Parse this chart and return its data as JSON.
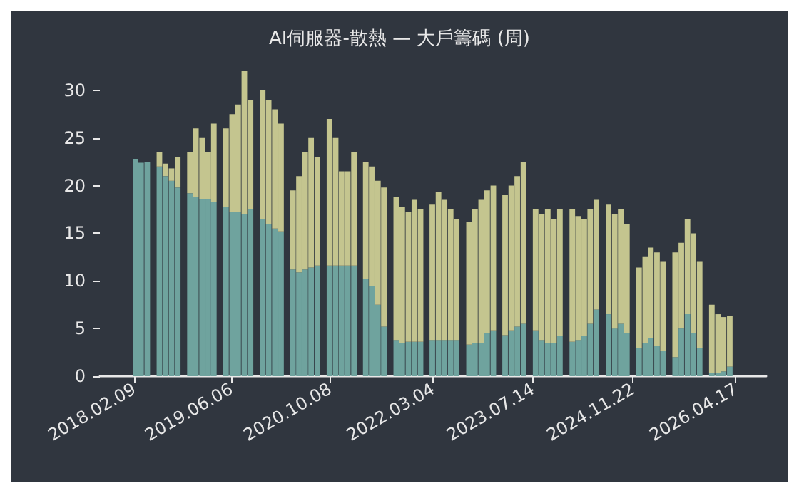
{
  "chart_data": {
    "type": "bar",
    "stacked": true,
    "title": "AI伺服器-散熱 — 大戶籌碼 (周)",
    "x": [
      "2018-02",
      "2018-03",
      "2018-04",
      "2018-05",
      "2018-06",
      "2018-07",
      "2018-08",
      "2018-09",
      "2018-10",
      "2018-11",
      "2018-12",
      "2019-01",
      "2019-02",
      "2019-03",
      "2019-04",
      "2019-05",
      "2019-06",
      "2019-07",
      "2019-08",
      "2019-09",
      "2019-10",
      "2019-11",
      "2019-12",
      "2020-01",
      "2020-02",
      "2020-03",
      "2020-04",
      "2020-05",
      "2020-06",
      "2020-07",
      "2020-08",
      "2020-09",
      "2020-10",
      "2020-11",
      "2020-12",
      "2021-01",
      "2021-02",
      "2021-03",
      "2021-04",
      "2021-05",
      "2021-06",
      "2021-07",
      "2021-08",
      "2021-09",
      "2021-10",
      "2021-11",
      "2021-12",
      "2022-01",
      "2022-02",
      "2022-03",
      "2022-04",
      "2022-05",
      "2022-06",
      "2022-07",
      "2022-08",
      "2022-09",
      "2022-10",
      "2022-11",
      "2022-12",
      "2023-01",
      "2023-02",
      "2023-03",
      "2023-04",
      "2023-05",
      "2023-06",
      "2023-07",
      "2023-08",
      "2023-09",
      "2023-10",
      "2023-11",
      "2023-12",
      "2024-01",
      "2024-02",
      "2024-03",
      "2024-04",
      "2024-05",
      "2024-06",
      "2024-07",
      "2024-08",
      "2024-09",
      "2024-10",
      "2024-11",
      "2024-12",
      "2025-01",
      "2025-02",
      "2025-03",
      "2025-04",
      "2025-05",
      "2025-06",
      "2025-07",
      "2025-08",
      "2025-09",
      "2025-10",
      "2025-11",
      "2025-12",
      "2026-01",
      "2026-02",
      "2026-03",
      "2026-04"
    ],
    "series": [
      {
        "color": "#6fa39e",
        "values": [
          22.8,
          22.4,
          22.5,
          null,
          22,
          21,
          20.5,
          19.8,
          null,
          19.2,
          18.8,
          18.6,
          18.6,
          18.3,
          null,
          17.8,
          17.2,
          17.2,
          17,
          17.5,
          null,
          16.5,
          16,
          15.5,
          15.2,
          null,
          11.2,
          10.9,
          11.2,
          11.4,
          11.6,
          null,
          11.6,
          11.6,
          11.6,
          11.6,
          11.6,
          null,
          10.2,
          9.5,
          7.5,
          5.2,
          null,
          3.8,
          3.5,
          3.6,
          3.6,
          3.6,
          null,
          3.8,
          3.8,
          3.8,
          3.8,
          3.8,
          null,
          3.3,
          3.5,
          3.5,
          4.5,
          4.8,
          null,
          4.3,
          4.8,
          5.2,
          5.5,
          null,
          4.8,
          3.8,
          3.5,
          3.5,
          4.2,
          null,
          3.6,
          3.8,
          4.2,
          5.5,
          7,
          null,
          6.5,
          5,
          5.5,
          4.5,
          null,
          3,
          3.5,
          4,
          3.2,
          2.7,
          null,
          2,
          5,
          6.5,
          4.5,
          3,
          null,
          0.3,
          0.3,
          0.5,
          1
        ]
      },
      {
        "color": "#c4c58f",
        "values": [
          0,
          0,
          0,
          null,
          1.5,
          1.3,
          1.3,
          3.2,
          null,
          4.3,
          7.2,
          6.4,
          4.9,
          8.2,
          null,
          8.2,
          10.3,
          11.3,
          15,
          11.5,
          null,
          13.5,
          13,
          12.5,
          11.3,
          null,
          8.3,
          10.1,
          12.3,
          13.6,
          11.4,
          null,
          15.4,
          13.4,
          9.9,
          9.9,
          11.9,
          null,
          12.3,
          12.5,
          13,
          14.6,
          null,
          15,
          14.3,
          13.6,
          14.9,
          13.9,
          null,
          14.2,
          15.5,
          14.7,
          13.7,
          12.7,
          null,
          12.9,
          14,
          15,
          15,
          15.2,
          null,
          14.7,
          15.2,
          15.8,
          17,
          null,
          12.7,
          13.2,
          14,
          13,
          13.3,
          null,
          13.9,
          13,
          12.3,
          12,
          11.5,
          null,
          11.5,
          12,
          12,
          11.5,
          null,
          8.4,
          9,
          9.5,
          9.8,
          9.3,
          null,
          11,
          9,
          10,
          10.5,
          9,
          null,
          7.2,
          6.2,
          5.7,
          5.3
        ]
      }
    ],
    "xlim": [
      "2017-08-22",
      "2026-09-15"
    ],
    "xticks": [
      {
        "value": "2018-02-09",
        "label": "2018.02.09"
      },
      {
        "value": "2019-06-06",
        "label": "2019.06.06"
      },
      {
        "value": "2020-10-08",
        "label": "2020.10.08"
      },
      {
        "value": "2022-03-04",
        "label": "2022.03.04"
      },
      {
        "value": "2023-07-14",
        "label": "2023.07.14"
      },
      {
        "value": "2024-11-22",
        "label": "2024.11.22"
      },
      {
        "value": "2026-04-17",
        "label": "2026.04.17"
      }
    ],
    "ylim": [
      0,
      32
    ],
    "yticks": [
      0,
      5,
      10,
      15,
      20,
      25,
      30
    ],
    "grid": false
  }
}
